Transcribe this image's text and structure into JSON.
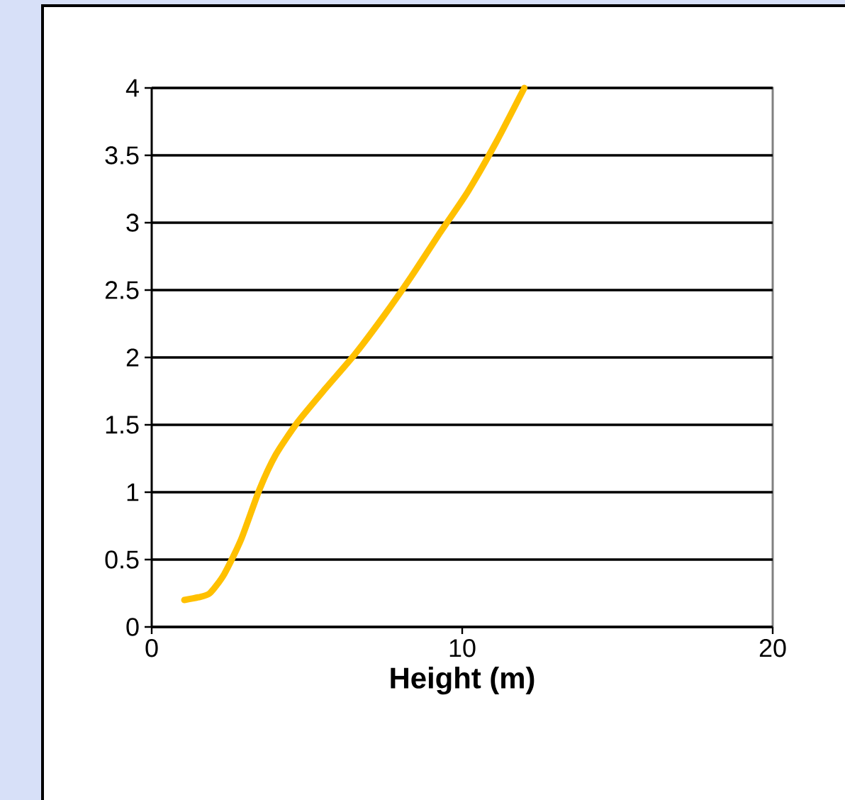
{
  "chart_data": {
    "type": "line",
    "xlabel": "Height (m)",
    "series": [
      {
        "color": "#ffc000",
        "x": [
          1.05,
          1.5,
          1.87,
          2.33,
          2.88,
          3.47,
          4.0,
          4.7,
          5.6,
          6.53,
          7.45,
          8.36,
          9.3,
          10.18,
          11.1,
          12.0
        ],
        "values": [
          0.2,
          0.22,
          0.25,
          0.39,
          0.65,
          1.02,
          1.28,
          1.52,
          1.77,
          2.02,
          2.3,
          2.6,
          2.93,
          3.23,
          3.6,
          4.0
        ]
      }
    ],
    "xlim": [
      0,
      20
    ],
    "ylim": [
      0,
      4
    ],
    "xticks": [
      0,
      10,
      20
    ],
    "yticks": [
      0,
      0.5,
      1,
      1.5,
      2,
      2.5,
      3,
      3.5,
      4
    ],
    "grid": "y"
  }
}
